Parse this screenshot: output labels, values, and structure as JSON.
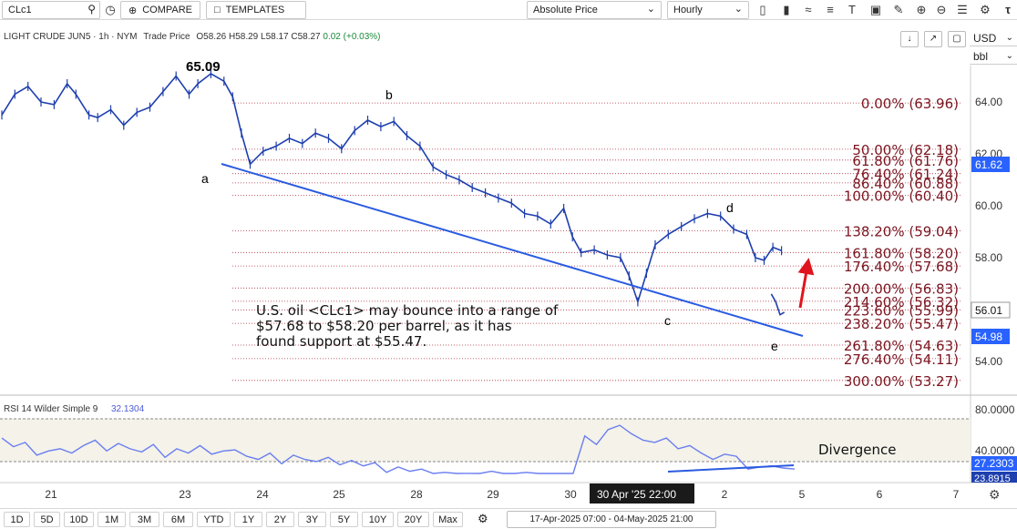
{
  "toolbar": {
    "symbol": "CLc1",
    "compare_label": "COMPARE",
    "templates_label": "TEMPLATES",
    "price_mode": "Absolute Price",
    "interval": "Hourly"
  },
  "legend": {
    "title": "LIGHT CRUDE JUN5 · 1h · NYM",
    "trade_price": "Trade Price",
    "ohlc": "O58.26 H58.29 L58.17 C58.27",
    "change": "0.02 (+0.03%)"
  },
  "scale": {
    "currency": "USD",
    "unit": "bbl"
  },
  "chart_data": {
    "type": "line",
    "series_name": "LIGHT CRUDE JUN5",
    "price_axis_ticks": [
      "64.00",
      "62.00",
      "60.00",
      "58.00",
      "56.00",
      "54.00"
    ],
    "price_ylim": [
      52.4,
      66.2
    ],
    "time_ticks": [
      "21",
      "23",
      "24",
      "25",
      "28",
      "29",
      "30",
      "2",
      "5",
      "6",
      "7"
    ],
    "price_path": [
      [
        0,
        63.5
      ],
      [
        3,
        64.3
      ],
      [
        6,
        64.6
      ],
      [
        9,
        64.0
      ],
      [
        12,
        63.9
      ],
      [
        15,
        64.7
      ],
      [
        17,
        64.3
      ],
      [
        20,
        63.5
      ],
      [
        22,
        63.4
      ],
      [
        25,
        63.7
      ],
      [
        28,
        63.1
      ],
      [
        31,
        63.6
      ],
      [
        34,
        63.8
      ],
      [
        37,
        64.4
      ],
      [
        40,
        65.0
      ],
      [
        43,
        64.3
      ],
      [
        45,
        64.7
      ],
      [
        48,
        65.09
      ],
      [
        51,
        64.8
      ],
      [
        53,
        64.2
      ],
      [
        55,
        62.8
      ],
      [
        57,
        61.6
      ],
      [
        60,
        62.1
      ],
      [
        63,
        62.3
      ],
      [
        66,
        62.6
      ],
      [
        69,
        62.4
      ],
      [
        72,
        62.8
      ],
      [
        75,
        62.6
      ],
      [
        78,
        62.2
      ],
      [
        81,
        62.9
      ],
      [
        84,
        63.3
      ],
      [
        87,
        63.05
      ],
      [
        90,
        63.25
      ],
      [
        93,
        62.7
      ],
      [
        96,
        62.3
      ],
      [
        99,
        61.5
      ],
      [
        102,
        61.2
      ],
      [
        105,
        61.0
      ],
      [
        108,
        60.7
      ],
      [
        111,
        60.5
      ],
      [
        114,
        60.3
      ],
      [
        117,
        60.1
      ],
      [
        120,
        59.7
      ],
      [
        123,
        59.6
      ],
      [
        126,
        59.3
      ],
      [
        129,
        59.9
      ],
      [
        131,
        58.8
      ],
      [
        133,
        58.2
      ],
      [
        136,
        58.3
      ],
      [
        139,
        58.1
      ],
      [
        142,
        58.0
      ],
      [
        144,
        57.3
      ],
      [
        146,
        56.3
      ],
      [
        148,
        57.4
      ],
      [
        150,
        58.5
      ],
      [
        153,
        58.9
      ],
      [
        156,
        59.2
      ],
      [
        159,
        59.5
      ],
      [
        162,
        59.7
      ],
      [
        165,
        59.6
      ],
      [
        168,
        59.1
      ],
      [
        171,
        58.9
      ],
      [
        173,
        58.0
      ],
      [
        175,
        57.9
      ],
      [
        177,
        58.4
      ],
      [
        179,
        58.27
      ]
    ],
    "price_path_tail": [
      [
        180,
        56.6
      ],
      [
        181,
        56.3
      ],
      [
        182,
        55.8
      ],
      [
        183,
        55.9
      ]
    ],
    "high_label": "65.09",
    "wave_labels": [
      "a",
      "b",
      "c",
      "d",
      "e"
    ],
    "fib_levels": [
      {
        "label": "0.00% (63.96)",
        "price": 63.96
      },
      {
        "label": "50.00% (62.18)",
        "price": 62.18
      },
      {
        "label": "61.80% (61.76)",
        "price": 61.76
      },
      {
        "label": "76.40% (61.24)",
        "price": 61.24
      },
      {
        "label": "86.40% (60.88)",
        "price": 60.88
      },
      {
        "label": "100.00% (60.40)",
        "price": 60.4
      },
      {
        "label": "138.20% (59.04)",
        "price": 59.04
      },
      {
        "label": "161.80% (58.20)",
        "price": 58.2
      },
      {
        "label": "176.40% (57.68)",
        "price": 57.68
      },
      {
        "label": "200.00% (56.83)",
        "price": 56.83
      },
      {
        "label": "214.60% (56.32)",
        "price": 56.32
      },
      {
        "label": "223.60% (55.99)",
        "price": 55.99
      },
      {
        "label": "238.20% (55.47)",
        "price": 55.47
      },
      {
        "label": "261.80% (54.63)",
        "price": 54.63
      },
      {
        "label": "276.40% (54.11)",
        "price": 54.11
      },
      {
        "label": "300.00% (53.27)",
        "price": 53.27
      }
    ],
    "price_badges": [
      "61.62",
      "56.01",
      "54.98"
    ],
    "annotation_lines": [
      "U.S. oil <CLc1> may bounce into a range of",
      "$57.68 to $58.20 per barrel, as it has",
      "found support at $55.47."
    ],
    "rsi": {
      "title": "RSI 14 Wilder Simple 9",
      "value": "32.1304",
      "axis_ticks": [
        "80.0000",
        "40.0000"
      ],
      "badges": [
        "27.2303",
        "23.8915"
      ],
      "label": "Divergence"
    },
    "crosshair_label": "30 Apr '25  22:00"
  },
  "range_buttons": [
    "1D",
    "5D",
    "10D",
    "1M",
    "3M",
    "6M",
    "YTD",
    "1Y",
    "2Y",
    "3Y",
    "5Y",
    "10Y",
    "20Y",
    "Max"
  ],
  "date_range": "17-Apr-2025 07:00 - 04-May-2025 21:00",
  "colors": {
    "price_line": "#1e3fae",
    "trend_line": "#2a5be0",
    "fib": "#7a1520",
    "fib_line": "#b03040",
    "arrow": "#e0141c",
    "rsi_line": "#6a7ef0",
    "badge_blue": "#2962ff"
  }
}
